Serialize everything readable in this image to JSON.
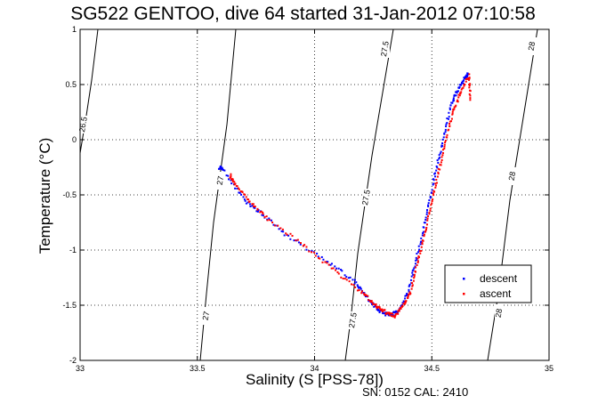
{
  "title": "SG522 GENTOO, dive 64 started 31-Jan-2012 07:10:58",
  "footer": "SN: 0152  CAL: 2410",
  "chart_data": {
    "type": "scatter",
    "title": "SG522 GENTOO, dive 64 started 31-Jan-2012 07:10:58",
    "xlabel": "Salinity (S [PSS-78])",
    "ylabel": "Temperature (°C)",
    "xlim": [
      33,
      35
    ],
    "ylim": [
      -2,
      1
    ],
    "x_ticks": [
      33,
      33.5,
      34,
      34.5,
      35
    ],
    "x_tick_labels": [
      "33",
      "33.5",
      "34",
      "34.5",
      "35"
    ],
    "y_ticks": [
      -2,
      -1.5,
      -1,
      -0.5,
      0,
      0.5,
      1
    ],
    "y_tick_labels": [
      "-2",
      "-1.5",
      "-1",
      "-0.5",
      "0",
      "0.5",
      "1"
    ],
    "grid": true,
    "grid_style": "dotted",
    "legend_position": "lower-right",
    "series": [
      {
        "name": "descent",
        "color": "#0000ff",
        "x": [
          33.595,
          33.61,
          33.7,
          33.78,
          33.9,
          34.05,
          34.17,
          34.22,
          34.26,
          34.3,
          34.33,
          34.36,
          34.4,
          34.43,
          34.46,
          34.49,
          34.52,
          34.55,
          34.58,
          34.61,
          34.64,
          34.655
        ],
        "y": [
          -0.25,
          -0.27,
          -0.55,
          -0.68,
          -0.9,
          -1.1,
          -1.28,
          -1.42,
          -1.52,
          -1.58,
          -1.58,
          -1.55,
          -1.38,
          -1.12,
          -0.85,
          -0.55,
          -0.25,
          0.02,
          0.3,
          0.45,
          0.55,
          0.6
        ]
      },
      {
        "name": "ascent",
        "color": "#ff0000",
        "x": [
          33.64,
          33.66,
          33.72,
          33.8,
          33.95,
          34.08,
          34.2,
          34.26,
          34.3,
          34.34,
          34.38,
          34.41,
          34.44,
          34.47,
          34.5,
          34.53,
          34.56,
          34.59,
          34.62,
          34.66,
          34.665
        ],
        "y": [
          -0.32,
          -0.4,
          -0.55,
          -0.72,
          -0.95,
          -1.18,
          -1.38,
          -1.5,
          -1.56,
          -1.6,
          -1.5,
          -1.38,
          -1.1,
          -0.85,
          -0.55,
          -0.28,
          0.0,
          0.25,
          0.42,
          0.58,
          0.35
        ]
      }
    ],
    "density_contours": [
      {
        "label": "26.5",
        "color": "#000000"
      },
      {
        "label": "27",
        "color": "#000000"
      },
      {
        "label": "27.5",
        "color": "#000000"
      },
      {
        "label": "28",
        "color": "#000000"
      }
    ]
  }
}
